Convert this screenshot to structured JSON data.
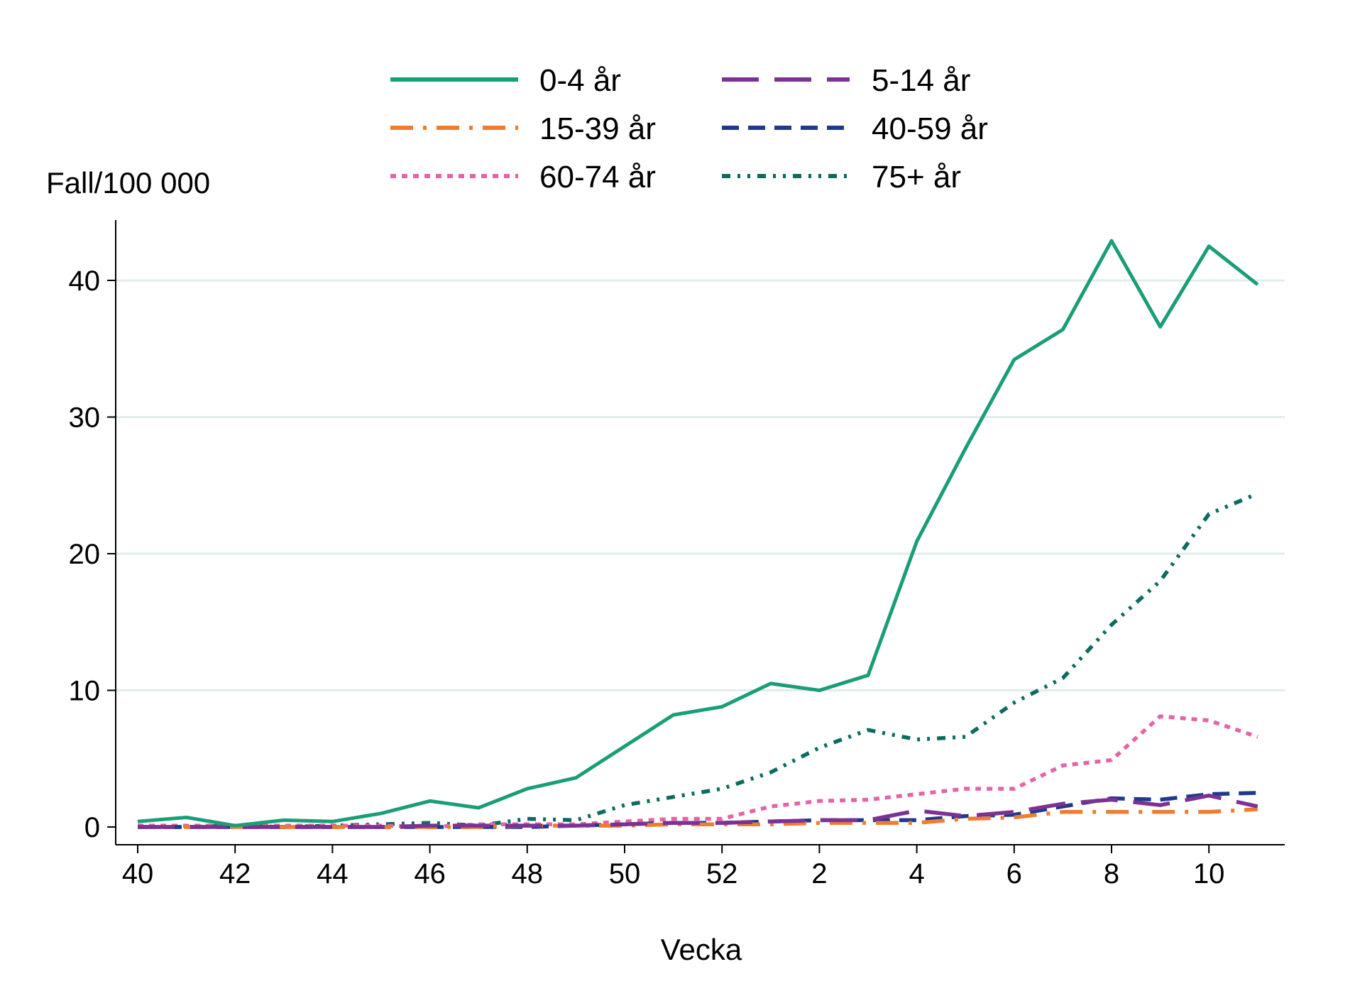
{
  "chart_data": {
    "type": "line",
    "title": "",
    "ylabel": "Fall/100 000",
    "xlabel": "Vecka",
    "ylim": [
      0,
      44
    ],
    "yticks": [
      0,
      10,
      20,
      30,
      40
    ],
    "grid": "horizontal",
    "legend_position": "top-center",
    "categories": [
      "40",
      "41",
      "42",
      "43",
      "44",
      "45",
      "46",
      "47",
      "48",
      "49",
      "50",
      "51",
      "52",
      "1",
      "2",
      "3",
      "4",
      "5",
      "6",
      "7",
      "8",
      "9",
      "10",
      "11"
    ],
    "xtick_labels": [
      "40",
      "",
      "42",
      "",
      "44",
      "",
      "46",
      "",
      "48",
      "",
      "50",
      "",
      "52",
      "",
      "2",
      "",
      "4",
      "",
      "6",
      "",
      "8",
      "",
      "10",
      ""
    ],
    "series": [
      {
        "name": "0-4 år",
        "color": "#1a9e77",
        "dash": "solid",
        "values": [
          0.4,
          0.7,
          0.1,
          0.5,
          0.4,
          1.0,
          1.9,
          1.4,
          2.8,
          3.6,
          5.9,
          8.2,
          8.8,
          10.5,
          10.0,
          11.1,
          20.9,
          27.7,
          34.2,
          36.4,
          42.9,
          36.6,
          42.5,
          39.7
        ]
      },
      {
        "name": "5-14 år",
        "color": "#7b3294",
        "dash": "longdash",
        "values": [
          0.0,
          0.0,
          0.0,
          0.0,
          0.0,
          0.0,
          0.1,
          0.1,
          0.1,
          0.1,
          0.2,
          0.3,
          0.3,
          0.4,
          0.5,
          0.5,
          1.2,
          0.8,
          1.1,
          1.7,
          2.0,
          1.6,
          2.3,
          1.5
        ]
      },
      {
        "name": "15-39 år",
        "color": "#ef7d2d",
        "dash": "dashdot",
        "values": [
          0.0,
          0.0,
          0.0,
          0.0,
          0.0,
          0.0,
          0.0,
          0.0,
          0.1,
          0.1,
          0.1,
          0.2,
          0.2,
          0.2,
          0.3,
          0.3,
          0.3,
          0.6,
          0.7,
          1.1,
          1.1,
          1.1,
          1.1,
          1.3
        ]
      },
      {
        "name": "40-59 år",
        "color": "#1f3a8c",
        "dash": "dash",
        "values": [
          0.0,
          0.0,
          0.0,
          0.0,
          0.0,
          0.0,
          0.0,
          0.0,
          0.0,
          0.1,
          0.2,
          0.3,
          0.3,
          0.4,
          0.5,
          0.5,
          0.5,
          0.8,
          0.9,
          1.5,
          2.1,
          2.0,
          2.4,
          2.5
        ]
      },
      {
        "name": "60-74 år",
        "color": "#e365a7",
        "dash": "dot",
        "values": [
          0.1,
          0.1,
          0.1,
          0.1,
          0.1,
          0.1,
          0.0,
          0.2,
          0.2,
          0.2,
          0.4,
          0.6,
          0.6,
          1.5,
          1.9,
          2.0,
          2.4,
          2.8,
          2.8,
          4.5,
          4.9,
          8.1,
          7.8,
          6.6
        ]
      },
      {
        "name": "75+ år",
        "color": "#0d6b5f",
        "dash": "dashdotdot",
        "values": [
          0.0,
          0.0,
          0.1,
          0.0,
          0.1,
          0.2,
          0.3,
          0.1,
          0.6,
          0.5,
          1.6,
          2.2,
          2.8,
          4.0,
          5.8,
          7.1,
          6.4,
          6.6,
          9.1,
          10.9,
          14.8,
          18.0,
          22.9,
          24.4
        ]
      }
    ]
  }
}
